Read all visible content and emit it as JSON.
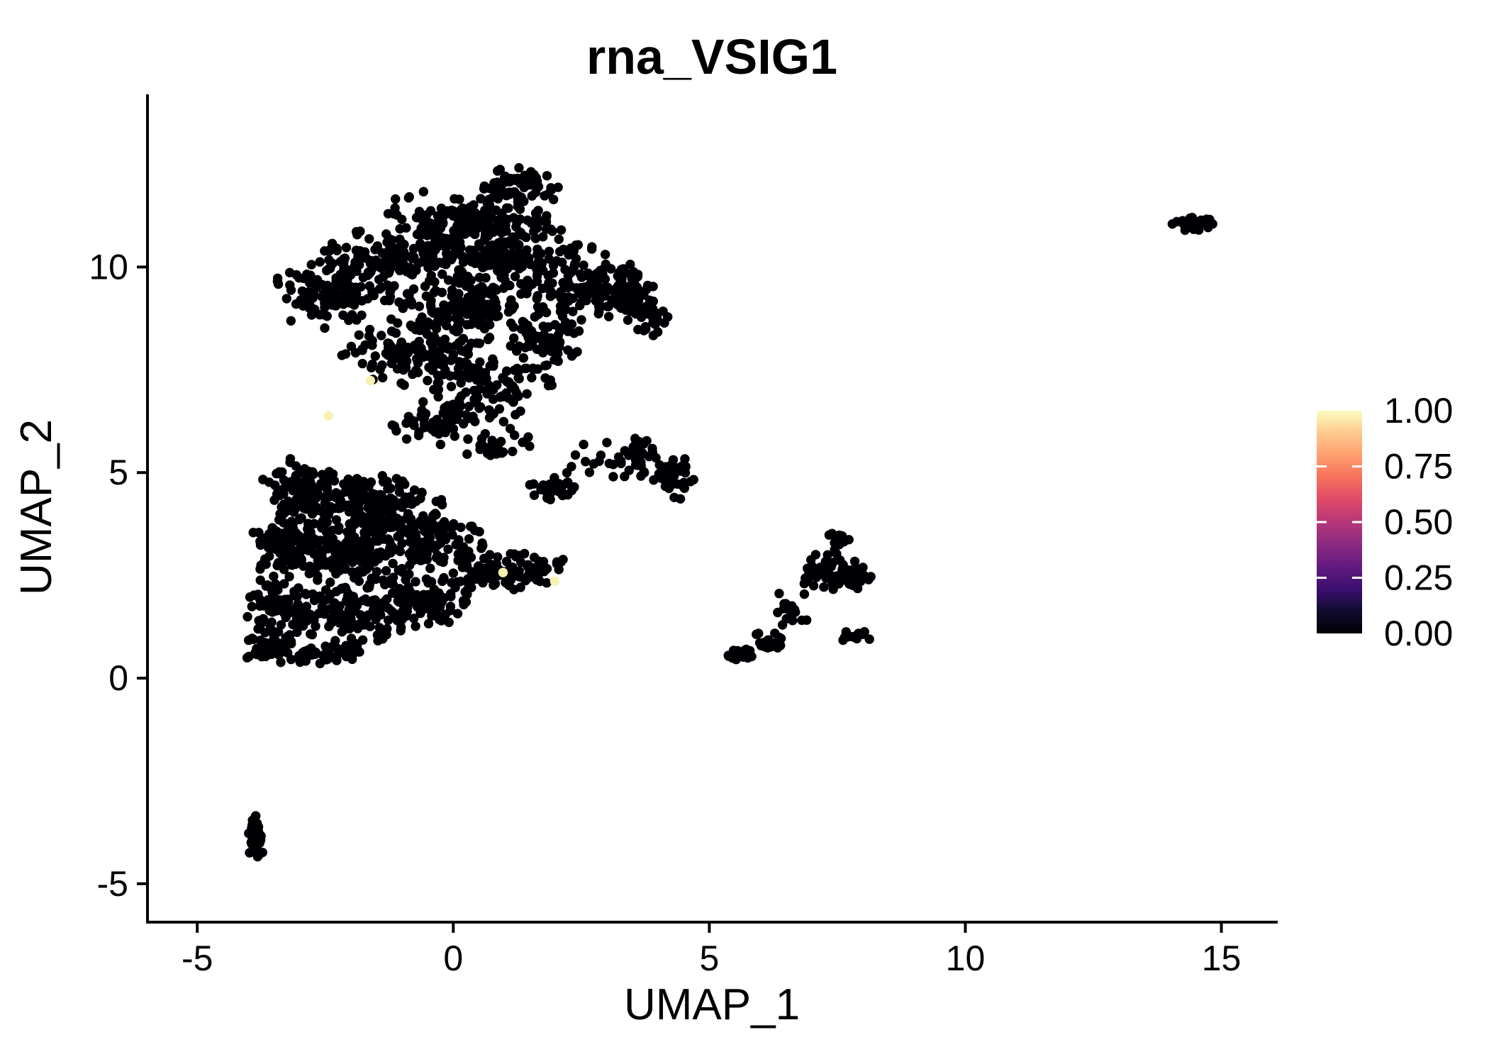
{
  "figure": {
    "title": "rna_VSIG1",
    "xlabel": "UMAP_1",
    "ylabel": "UMAP_2"
  },
  "chart_data": {
    "type": "scatter",
    "title": "rna_VSIG1",
    "xlabel": "UMAP_1",
    "ylabel": "UMAP_2",
    "xlim": [
      -6.0,
      16.1
    ],
    "ylim": [
      -5.9,
      14.2
    ],
    "xticks": {
      "values": [
        -5,
        0,
        5,
        10,
        15
      ],
      "labels": [
        "-5",
        "0",
        "5",
        "10",
        "15"
      ]
    },
    "yticks": {
      "values": [
        -5,
        0,
        5,
        10
      ],
      "labels": [
        "-5",
        "0",
        "5",
        "10"
      ]
    },
    "grid": false,
    "background": "#FFFFFF",
    "point": {
      "color": "#000004",
      "radius_px": 6.7
    },
    "colorbar": {
      "colormap": "magma",
      "position": "right",
      "ticks": [
        {
          "value": 1.0,
          "label": "1.00"
        },
        {
          "value": 0.75,
          "label": "0.75"
        },
        {
          "value": 0.5,
          "label": "0.50"
        },
        {
          "value": 0.25,
          "label": "0.25"
        },
        {
          "value": 0.0,
          "label": "0.00"
        }
      ],
      "stops": [
        {
          "t": 0.0,
          "color": "#000004"
        },
        {
          "t": 0.1,
          "color": "#110C31"
        },
        {
          "t": 0.2,
          "color": "#3B0F70"
        },
        {
          "t": 0.3,
          "color": "#641A80"
        },
        {
          "t": 0.4,
          "color": "#8C2981"
        },
        {
          "t": 0.5,
          "color": "#B73779"
        },
        {
          "t": 0.6,
          "color": "#DE4968"
        },
        {
          "t": 0.7,
          "color": "#F7705C"
        },
        {
          "t": 0.8,
          "color": "#FE9F6D"
        },
        {
          "t": 0.9,
          "color": "#FEC98D"
        },
        {
          "t": 1.0,
          "color": "#FCFDBF"
        }
      ]
    },
    "clusters": [
      {
        "name": "upper-main-cluster",
        "expression": 0.0,
        "blobs": [
          [
            1.3,
            12.0,
            0.8,
            0.45,
            60
          ],
          [
            0.3,
            11.2,
            1.6,
            0.75,
            140
          ],
          [
            -1.2,
            10.2,
            1.5,
            0.85,
            150
          ],
          [
            1.0,
            10.3,
            1.6,
            0.85,
            170
          ],
          [
            2.6,
            9.6,
            1.2,
            0.9,
            130
          ],
          [
            -2.4,
            9.3,
            1.2,
            0.85,
            110
          ],
          [
            0.2,
            9.0,
            1.5,
            0.8,
            150
          ],
          [
            -0.6,
            7.9,
            1.6,
            0.8,
            130
          ],
          [
            0.8,
            7.0,
            1.2,
            0.8,
            90
          ],
          [
            -0.2,
            6.2,
            1.0,
            0.6,
            60
          ],
          [
            1.8,
            8.3,
            0.8,
            0.7,
            70
          ],
          [
            3.4,
            9.3,
            0.7,
            0.6,
            55
          ],
          [
            3.8,
            8.8,
            0.4,
            0.5,
            20
          ],
          [
            0.9,
            5.6,
            0.7,
            0.5,
            25
          ],
          [
            2.7,
            5.2,
            0.6,
            0.7,
            15
          ]
        ]
      },
      {
        "name": "lower-main-cluster",
        "expression": 0.0,
        "blobs": [
          [
            -2.8,
            4.6,
            1.0,
            0.8,
            110
          ],
          [
            -1.4,
            4.2,
            1.2,
            0.8,
            130
          ],
          [
            -3.2,
            3.3,
            0.9,
            0.9,
            120
          ],
          [
            -1.8,
            3.0,
            1.2,
            0.9,
            150
          ],
          [
            -0.4,
            3.3,
            1.0,
            0.8,
            110
          ],
          [
            -3.3,
            1.8,
            0.8,
            0.8,
            90
          ],
          [
            -2.0,
            1.5,
            1.1,
            0.8,
            110
          ],
          [
            -0.6,
            1.9,
            0.9,
            0.7,
            80
          ],
          [
            0.7,
            2.5,
            0.9,
            0.6,
            70
          ],
          [
            -3.6,
            0.7,
            0.5,
            0.4,
            40
          ],
          [
            -2.6,
            0.6,
            0.8,
            0.4,
            50
          ],
          [
            1.6,
            2.7,
            0.6,
            0.5,
            40
          ],
          [
            1.85,
            4.6,
            0.5,
            0.3,
            35
          ]
        ]
      },
      {
        "name": "middle-small-cluster",
        "expression": 0.0,
        "blobs": [
          [
            3.6,
            5.3,
            0.45,
            0.55,
            30
          ],
          [
            4.3,
            4.9,
            0.45,
            0.6,
            40
          ]
        ]
      },
      {
        "name": "right-diagonal-cluster",
        "expression": 0.0,
        "blobs": [
          [
            5.6,
            0.55,
            0.3,
            0.2,
            25
          ],
          [
            6.1,
            0.9,
            0.35,
            0.25,
            20
          ],
          [
            6.6,
            1.7,
            0.4,
            0.45,
            20
          ],
          [
            7.2,
            2.6,
            0.5,
            0.5,
            45
          ],
          [
            7.8,
            2.5,
            0.4,
            0.4,
            30
          ],
          [
            7.5,
            3.3,
            0.25,
            0.3,
            12
          ],
          [
            7.85,
            1.0,
            0.3,
            0.18,
            15
          ]
        ]
      },
      {
        "name": "top-right-cluster",
        "expression": 0.0,
        "blobs": [
          [
            14.5,
            11.05,
            0.5,
            0.18,
            40
          ]
        ]
      },
      {
        "name": "bottom-left-cluster",
        "expression": 0.0,
        "blobs": [
          [
            -3.85,
            -3.9,
            0.18,
            0.72,
            35
          ]
        ]
      }
    ],
    "highlight_points": [
      {
        "x": -1.62,
        "y": 7.24,
        "value": 1.0
      },
      {
        "x": -2.44,
        "y": 6.38,
        "value": 1.0
      },
      {
        "x": 0.97,
        "y": 2.57,
        "value": 1.0
      },
      {
        "x": 1.98,
        "y": 2.36,
        "value": 1.0
      }
    ],
    "highlight_color": "#F8F2B2"
  }
}
